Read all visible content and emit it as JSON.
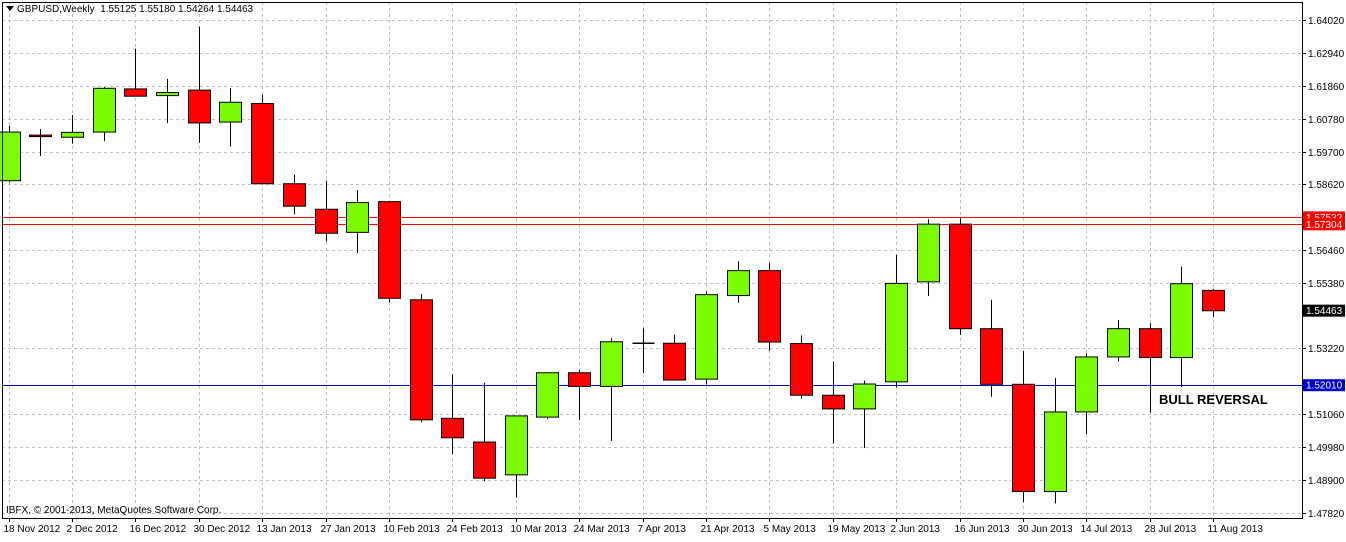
{
  "header": {
    "symbol": "GBPUSD,Weekly",
    "ohlc": "1.55125 1.55180 1.54264 1.54463"
  },
  "copyright": "IBFX, © 2001-2013, MetaQuotes Software Corp.",
  "annotation": "BULL REVERSAL",
  "colors": {
    "bull": "#7cfc00",
    "bear": "#ff0000",
    "grid": "#c0c0c0",
    "axis": "#000000",
    "resistance_line": "#ff0000",
    "support_line": "#0000cd",
    "current_price_badge": "#000000"
  },
  "chart_data": {
    "type": "candlestick",
    "title": "",
    "xlabel": "",
    "ylabel": "",
    "ylim": [
      1.4764,
      1.6462
    ],
    "grid": true,
    "y_ticks": [
      "1.64020",
      "1.62940",
      "1.61860",
      "1.60780",
      "1.59700",
      "1.58620",
      "1.56460",
      "1.55380",
      "1.53220",
      "1.51060",
      "1.49980",
      "1.48900",
      "1.47820"
    ],
    "x_ticks": [
      {
        "index": 0,
        "label": "18 Nov 2012"
      },
      {
        "index": 2,
        "label": "2 Dec 2012"
      },
      {
        "index": 4,
        "label": "16 Dec 2012"
      },
      {
        "index": 6,
        "label": "30 Dec 2012"
      },
      {
        "index": 8,
        "label": "13 Jan 2013"
      },
      {
        "index": 10,
        "label": "27 Jan 2013"
      },
      {
        "index": 12,
        "label": "10 Feb 2013"
      },
      {
        "index": 14,
        "label": "24 Feb 2013"
      },
      {
        "index": 16,
        "label": "10 Mar 2013"
      },
      {
        "index": 18,
        "label": "24 Mar 2013"
      },
      {
        "index": 20,
        "label": "7 Apr 2013"
      },
      {
        "index": 22,
        "label": "21 Apr 2013"
      },
      {
        "index": 24,
        "label": "5 May 2013"
      },
      {
        "index": 26,
        "label": "19 May 2013"
      },
      {
        "index": 28,
        "label": "2 Jun 2013"
      },
      {
        "index": 30,
        "label": "16 Jun 2013"
      },
      {
        "index": 32,
        "label": "30 Jun 2013"
      },
      {
        "index": 34,
        "label": "14 Jul 2013"
      },
      {
        "index": 36,
        "label": "28 Jul 2013"
      },
      {
        "index": 38,
        "label": "11 Aug 2013"
      }
    ],
    "horizontal_lines": [
      {
        "value": 1.57532,
        "label": "1.57532",
        "color": "#ff0000"
      },
      {
        "value": 1.57304,
        "label": "1.57304",
        "color": "#ff0000"
      },
      {
        "value": 1.5201,
        "label": "1.52010",
        "color": "#0000cd"
      }
    ],
    "current_price": {
      "value": 1.54463,
      "label": "1.54463"
    },
    "candles": [
      {
        "o": 1.5874,
        "h": 1.6055,
        "l": 1.5869,
        "c": 1.6034
      },
      {
        "o": 1.6024,
        "h": 1.6044,
        "l": 1.5955,
        "c": 1.6019
      },
      {
        "o": 1.6017,
        "h": 1.609,
        "l": 1.5996,
        "c": 1.6033
      },
      {
        "o": 1.6034,
        "h": 1.6182,
        "l": 1.6004,
        "c": 1.6178
      },
      {
        "o": 1.6176,
        "h": 1.6308,
        "l": 1.6153,
        "c": 1.6152
      },
      {
        "o": 1.6154,
        "h": 1.6209,
        "l": 1.6064,
        "c": 1.6164
      },
      {
        "o": 1.6172,
        "h": 1.6381,
        "l": 1.5999,
        "c": 1.6064
      },
      {
        "o": 1.6067,
        "h": 1.6179,
        "l": 1.5987,
        "c": 1.6132
      },
      {
        "o": 1.6128,
        "h": 1.6157,
        "l": 1.5864,
        "c": 1.5864
      },
      {
        "o": 1.5864,
        "h": 1.5894,
        "l": 1.5763,
        "c": 1.579
      },
      {
        "o": 1.578,
        "h": 1.5874,
        "l": 1.5674,
        "c": 1.5701
      },
      {
        "o": 1.5704,
        "h": 1.5843,
        "l": 1.5636,
        "c": 1.5802
      },
      {
        "o": 1.5805,
        "h": 1.5805,
        "l": 1.5474,
        "c": 1.5487
      },
      {
        "o": 1.5482,
        "h": 1.5501,
        "l": 1.5079,
        "c": 1.5087
      },
      {
        "o": 1.5092,
        "h": 1.5237,
        "l": 1.4974,
        "c": 1.5028
      },
      {
        "o": 1.5014,
        "h": 1.5209,
        "l": 1.4885,
        "c": 1.4895
      },
      {
        "o": 1.4906,
        "h": 1.5091,
        "l": 1.4831,
        "c": 1.51
      },
      {
        "o": 1.5096,
        "h": 1.5237,
        "l": 1.5089,
        "c": 1.5242
      },
      {
        "o": 1.5242,
        "h": 1.5251,
        "l": 1.5086,
        "c": 1.5197
      },
      {
        "o": 1.5197,
        "h": 1.5356,
        "l": 1.5018,
        "c": 1.5344
      },
      {
        "o": 1.5339,
        "h": 1.5388,
        "l": 1.5241,
        "c": 1.5339
      },
      {
        "o": 1.5339,
        "h": 1.5368,
        "l": 1.5224,
        "c": 1.5218
      },
      {
        "o": 1.5221,
        "h": 1.551,
        "l": 1.5203,
        "c": 1.5499
      },
      {
        "o": 1.5496,
        "h": 1.5609,
        "l": 1.5472,
        "c": 1.5578
      },
      {
        "o": 1.5578,
        "h": 1.5604,
        "l": 1.5314,
        "c": 1.5343
      },
      {
        "o": 1.5338,
        "h": 1.5365,
        "l": 1.5157,
        "c": 1.5168
      },
      {
        "o": 1.5168,
        "h": 1.5279,
        "l": 1.5009,
        "c": 1.5123
      },
      {
        "o": 1.5123,
        "h": 1.5216,
        "l": 1.4994,
        "c": 1.5205
      },
      {
        "o": 1.5212,
        "h": 1.563,
        "l": 1.5194,
        "c": 1.5536
      },
      {
        "o": 1.5541,
        "h": 1.5747,
        "l": 1.5494,
        "c": 1.5731
      },
      {
        "o": 1.5731,
        "h": 1.5751,
        "l": 1.5366,
        "c": 1.5387
      },
      {
        "o": 1.5387,
        "h": 1.5482,
        "l": 1.5163,
        "c": 1.5204
      },
      {
        "o": 1.5204,
        "h": 1.5313,
        "l": 1.4816,
        "c": 1.4851
      },
      {
        "o": 1.4851,
        "h": 1.5225,
        "l": 1.4812,
        "c": 1.5113
      },
      {
        "o": 1.5113,
        "h": 1.5306,
        "l": 1.504,
        "c": 1.5294
      },
      {
        "o": 1.5294,
        "h": 1.5415,
        "l": 1.5279,
        "c": 1.5387
      },
      {
        "o": 1.5387,
        "h": 1.5405,
        "l": 1.5111,
        "c": 1.5292
      },
      {
        "o": 1.5292,
        "h": 1.5591,
        "l": 1.5195,
        "c": 1.5535
      },
      {
        "o": 1.5513,
        "h": 1.5518,
        "l": 1.5426,
        "c": 1.5446
      }
    ]
  }
}
